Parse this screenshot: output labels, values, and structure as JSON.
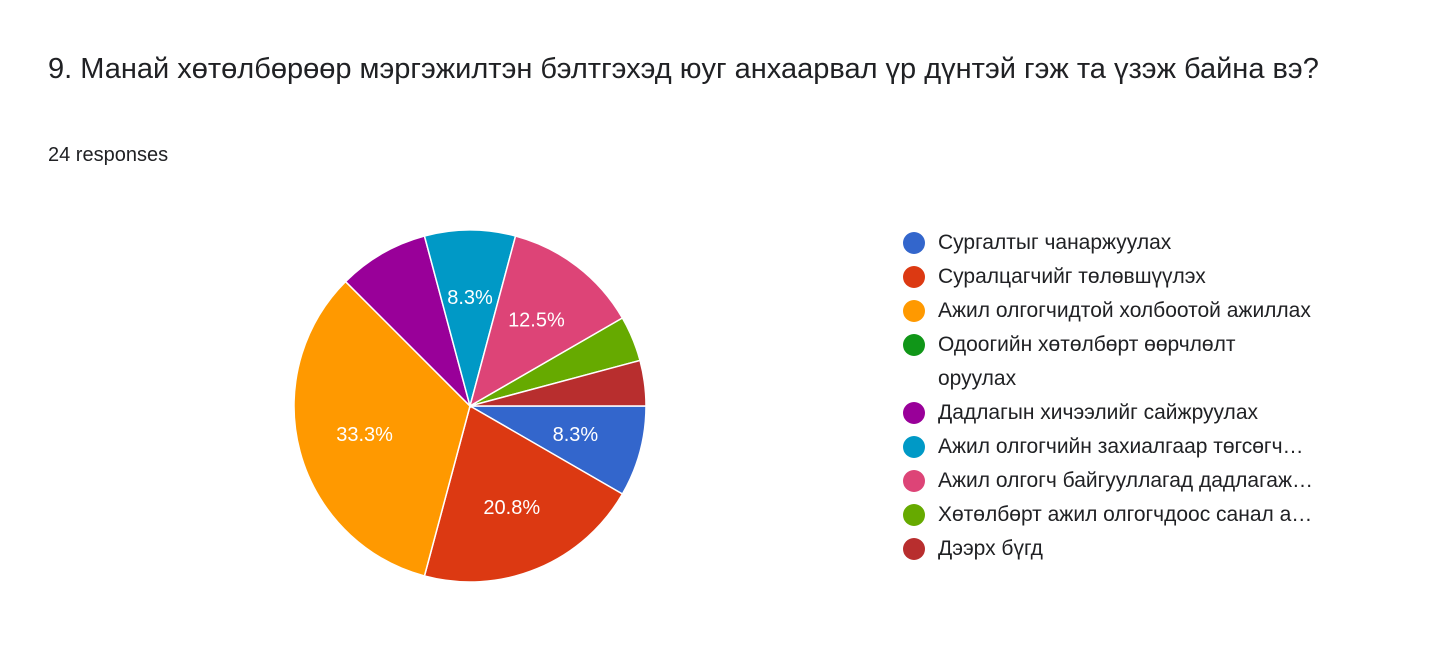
{
  "question": {
    "title": "9. Манай хөтөлбөрөөр мэргэжилтэн бэлтгэхэд юуг анхаарвал үр дүнтэй гэж та үзэж байна вэ?",
    "responses": "24 responses"
  },
  "chart_data": {
    "type": "pie",
    "total": 24,
    "start_angle_deg": 90,
    "direction": "clockwise",
    "legend_position": "right",
    "series": [
      {
        "label": "Сургалтыг чанаржуулах",
        "value": 2,
        "percent_label": "8.3%",
        "color": "#3366cc"
      },
      {
        "label": "Суралцагчийг төлөвшүүлэх",
        "value": 5,
        "percent_label": "20.8%",
        "color": "#dc3912"
      },
      {
        "label": "Ажил олгогчидтой холбоотой ажиллах",
        "value": 8,
        "percent_label": "33.3%",
        "color": "#ff9900"
      },
      {
        "label": "Одоогийн хөтөлбөрт өөрчлөлт оруулах",
        "value": 0,
        "percent_label": "",
        "color": "#109618"
      },
      {
        "label": "Дадлагын хичээлийг сайжруулах",
        "value": 2,
        "percent_label": "",
        "color": "#990099"
      },
      {
        "label": "Ажил олгогчийн захиалгаар төгсөгч…",
        "value": 2,
        "percent_label": "8.3%",
        "color": "#0099c6"
      },
      {
        "label": "Ажил олгогч байгууллагад дадлагаж…",
        "value": 3,
        "percent_label": "12.5%",
        "color": "#dd4477"
      },
      {
        "label": "Хөтөлбөрт ажил олгогчдоос санал а…",
        "value": 1,
        "percent_label": "",
        "color": "#66aa00"
      },
      {
        "label": "Дээрх бүгд",
        "value": 1,
        "percent_label": "",
        "color": "#b82e2e"
      }
    ]
  }
}
